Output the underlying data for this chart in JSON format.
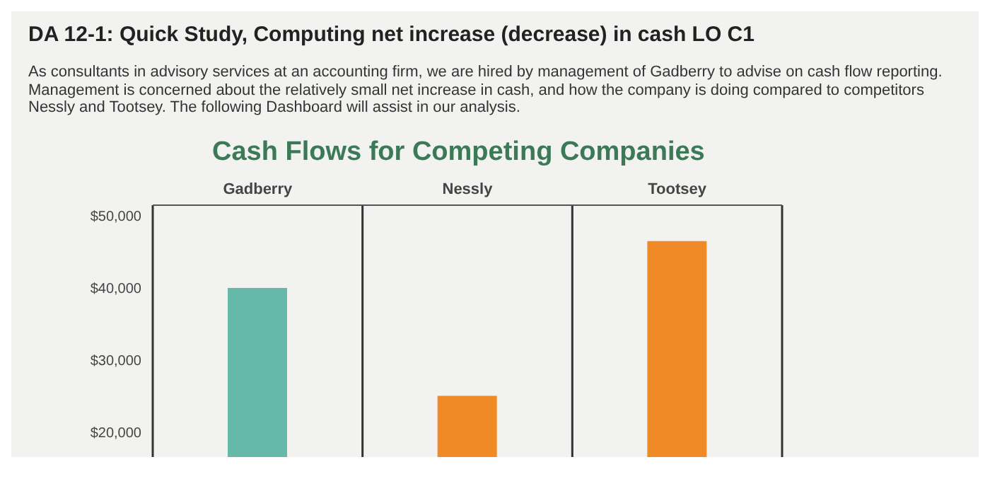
{
  "chart_data": {
    "type": "bar",
    "title": "Cash Flows for Competing Companies",
    "annotations": [
      "DA 12-1: Quick Study, Computing net increase (decrease) in cash LO C1",
      "As consultants in advisory services at an accounting firm, we are hired by management of Gadberry to advise on cash flow reporting. Management is concerned about the relatively small net increase in cash, and how the company is doing compared to competitors Nessly and Tootsey. The following Dashboard will assist in our analysis."
    ],
    "categories": [
      "Gadberry",
      "Nessly",
      "Tootsey"
    ],
    "values": [
      40000,
      25000,
      46500
    ],
    "colors": [
      "#66b9a9",
      "#f08a27",
      "#f08a27"
    ],
    "ylim": [
      16500,
      51500
    ],
    "yticks": [
      {
        "value": 20000,
        "label": "$20,000"
      },
      {
        "value": 30000,
        "label": "$30,000"
      },
      {
        "value": 40000,
        "label": "$40,000"
      },
      {
        "value": 50000,
        "label": "$50,000"
      }
    ]
  }
}
